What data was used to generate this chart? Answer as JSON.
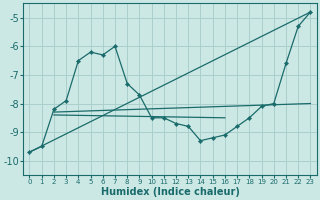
{
  "background_color": "#cce8e5",
  "grid_color": "#aacfcc",
  "line_color": "#1a6b6b",
  "xlabel": "Humidex (Indice chaleur)",
  "xlim": [
    -0.5,
    23.5
  ],
  "ylim": [
    -10.5,
    -4.5
  ],
  "yticks": [
    -10,
    -9,
    -8,
    -7,
    -6,
    -5
  ],
  "xticks": [
    0,
    1,
    2,
    3,
    4,
    5,
    6,
    7,
    8,
    9,
    10,
    11,
    12,
    13,
    14,
    15,
    16,
    17,
    18,
    19,
    20,
    21,
    22,
    23
  ],
  "series_main": {
    "x": [
      0,
      1,
      2,
      3,
      4,
      5,
      6,
      7,
      8,
      9,
      10,
      11,
      12,
      13,
      14,
      15,
      16,
      17,
      18,
      19,
      20,
      21,
      22,
      23
    ],
    "y": [
      -9.7,
      -9.5,
      -8.2,
      -7.9,
      -6.5,
      -6.2,
      -6.3,
      -6.0,
      -7.3,
      -7.7,
      -8.5,
      -8.5,
      -8.7,
      -8.8,
      -9.3,
      -9.2,
      -9.1,
      -8.8,
      -8.5,
      -8.1,
      -8.0,
      -6.6,
      -5.3,
      -4.8
    ]
  },
  "series_diagonal": {
    "x": [
      0,
      23
    ],
    "y": [
      -9.7,
      -4.8
    ]
  },
  "series_flat1": {
    "x": [
      2,
      23
    ],
    "y": [
      -8.3,
      -8.0
    ]
  },
  "series_flat2": {
    "x": [
      2,
      16
    ],
    "y": [
      -8.4,
      -8.5
    ]
  }
}
